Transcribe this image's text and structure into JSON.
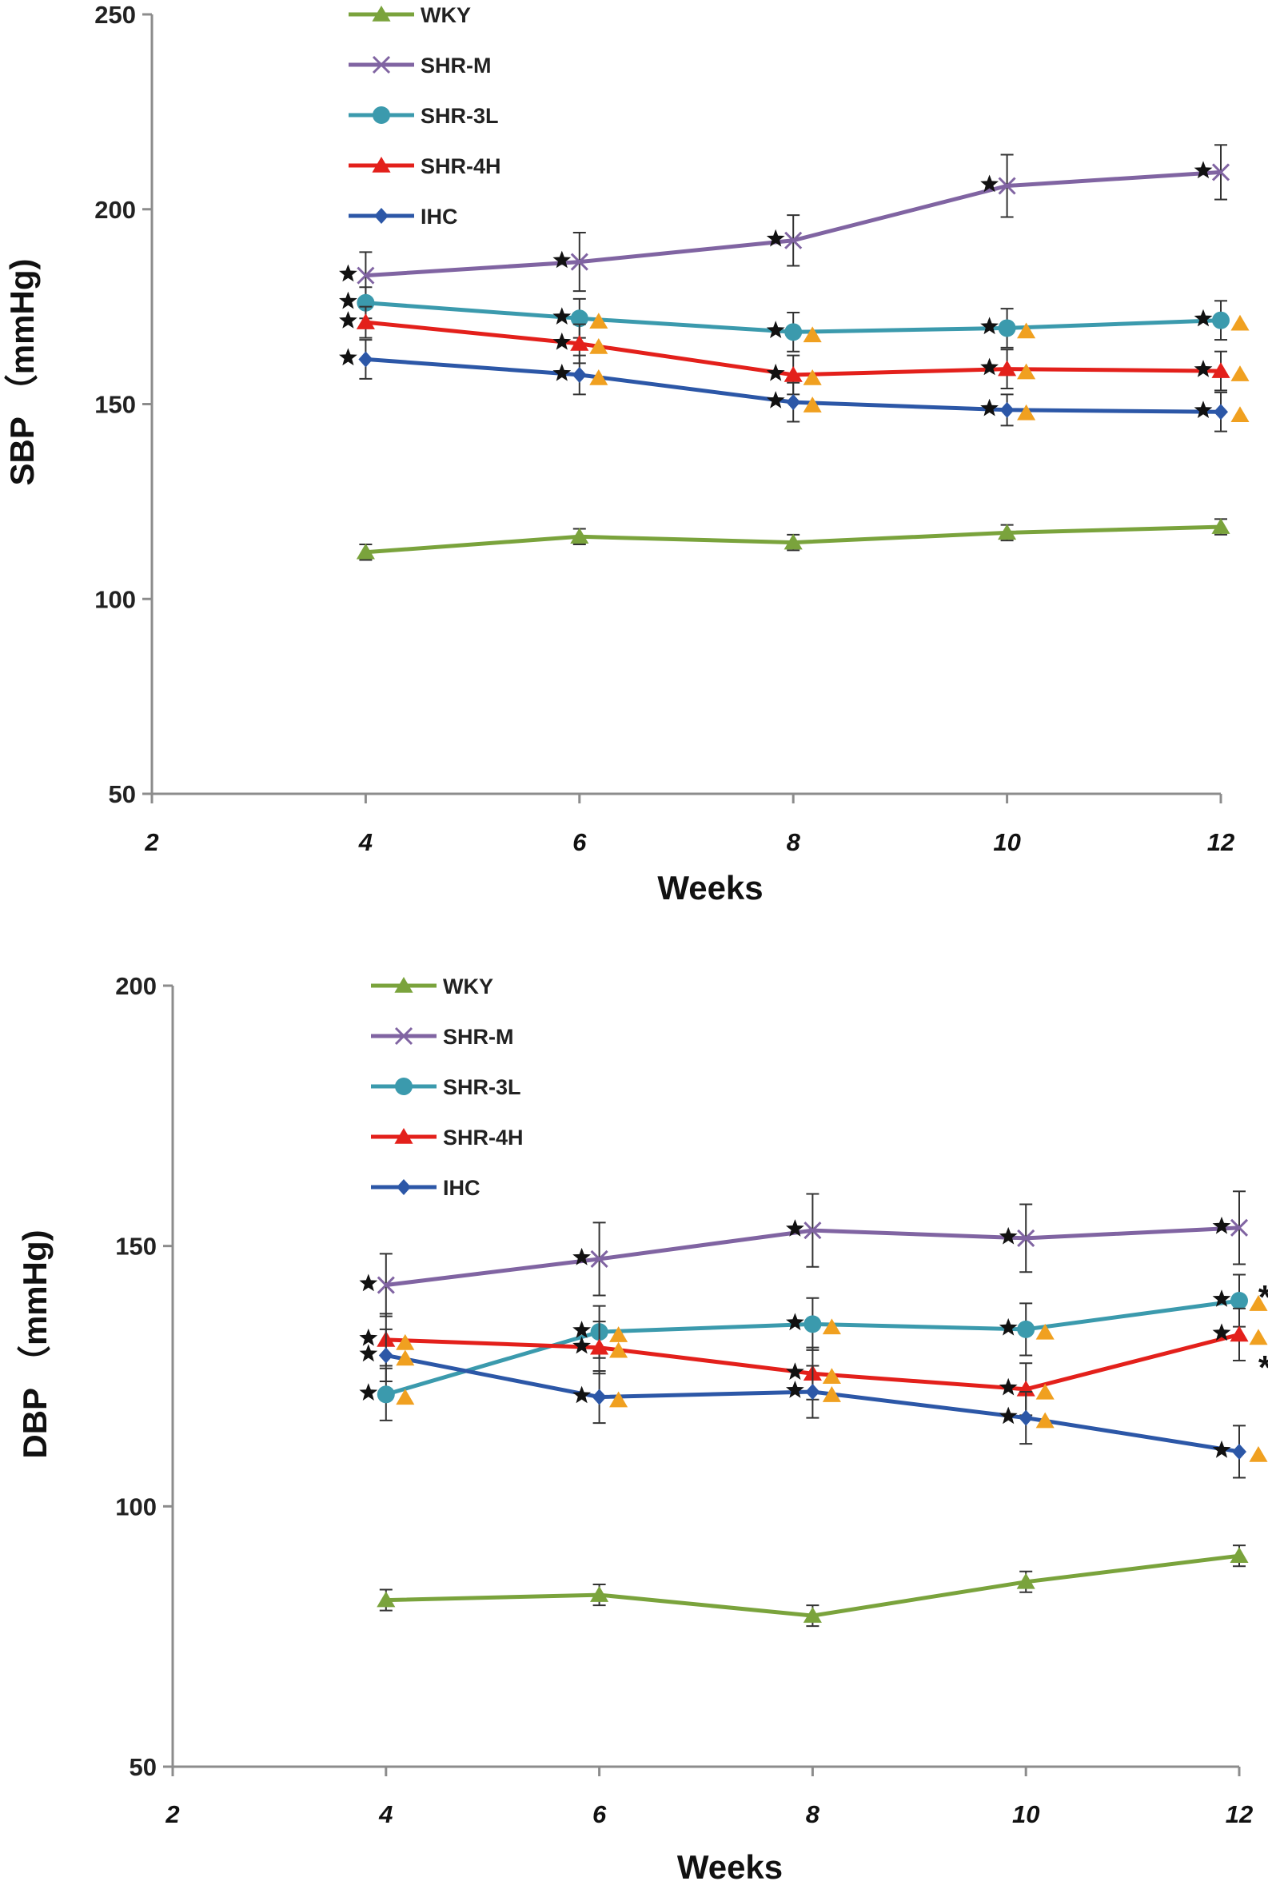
{
  "colors": {
    "WKY": "#7aa33c",
    "SHR-M": "#8064a2",
    "SHR-3L": "#3b9aad",
    "SHR-4H": "#e3201b",
    "IHC": "#2c57a7",
    "star": "#111111",
    "triangle": "#f0a020",
    "axis": "#8c8c8c"
  },
  "chart_data": [
    {
      "type": "line",
      "title": "",
      "xlabel": "Weeks",
      "ylabel": "SBP （mmHg)",
      "xlim": [
        2,
        12
      ],
      "ylim": [
        50,
        250
      ],
      "x_ticks": [
        "2",
        "4",
        "6",
        "8",
        "10",
        "12"
      ],
      "y_ticks": [
        "50",
        "100",
        "150",
        "200",
        "250"
      ],
      "legend_position": "top-left",
      "x": [
        4,
        6,
        8,
        10,
        12
      ],
      "series": [
        {
          "name": "WKY",
          "marker": "triangle",
          "values": [
            112,
            116,
            114.5,
            117,
            118.5
          ],
          "err": [
            2,
            2,
            2,
            2,
            2
          ],
          "stars": [
            false,
            false,
            false,
            false,
            false
          ],
          "triangles": [
            false,
            false,
            false,
            false,
            false
          ]
        },
        {
          "name": "SHR-M",
          "marker": "x",
          "values": [
            183,
            186.5,
            192,
            206,
            209.5
          ],
          "err": [
            6,
            7.5,
            6.5,
            8,
            7
          ],
          "stars": [
            true,
            true,
            true,
            true,
            true
          ],
          "triangles": [
            false,
            false,
            false,
            false,
            false
          ]
        },
        {
          "name": "SHR-3L",
          "marker": "circle",
          "values": [
            176,
            172,
            168.5,
            169.5,
            171.5
          ],
          "err": [
            4,
            5,
            5,
            5,
            5
          ],
          "stars": [
            true,
            true,
            true,
            true,
            true
          ],
          "triangles": [
            false,
            true,
            true,
            true,
            true
          ]
        },
        {
          "name": "SHR-4H",
          "marker": "triangle",
          "values": [
            171,
            165.5,
            157.5,
            159,
            158.5
          ],
          "err": [
            4,
            5,
            5,
            5,
            5
          ],
          "stars": [
            true,
            true,
            true,
            true,
            true
          ],
          "triangles": [
            false,
            true,
            true,
            true,
            true
          ]
        },
        {
          "name": "IHC",
          "marker": "diamond",
          "values": [
            161.5,
            157.5,
            150.5,
            148.5,
            148
          ],
          "err": [
            5,
            5,
            5,
            4,
            5
          ],
          "stars": [
            true,
            true,
            true,
            true,
            true
          ],
          "triangles": [
            false,
            true,
            true,
            true,
            true
          ]
        }
      ]
    },
    {
      "type": "line",
      "title": "",
      "xlabel": "Weeks",
      "ylabel": "DBP （mmHg)",
      "xlim": [
        2,
        12
      ],
      "ylim": [
        50,
        200
      ],
      "x_ticks": [
        "2",
        "4",
        "6",
        "8",
        "10",
        "12"
      ],
      "y_ticks": [
        "50",
        "100",
        "150",
        "200"
      ],
      "legend_position": "top-left",
      "x": [
        4,
        6,
        8,
        10,
        12
      ],
      "series": [
        {
          "name": "WKY",
          "marker": "triangle",
          "values": [
            82,
            83,
            79,
            85.5,
            90.5
          ],
          "err": [
            2,
            2,
            2,
            2,
            2
          ],
          "stars": [
            false,
            false,
            false,
            false,
            false
          ],
          "triangles": [
            false,
            false,
            false,
            false,
            false
          ]
        },
        {
          "name": "SHR-M",
          "marker": "x",
          "values": [
            142.5,
            147.5,
            153,
            151.5,
            153.5
          ],
          "err": [
            6,
            7,
            7,
            6.5,
            7
          ],
          "stars": [
            true,
            true,
            true,
            true,
            true
          ],
          "triangles": [
            false,
            false,
            false,
            false,
            false
          ]
        },
        {
          "name": "SHR-3L",
          "marker": "circle",
          "values": [
            121.5,
            133.5,
            135,
            134,
            139.5
          ],
          "err": [
            5,
            5,
            5,
            5,
            5
          ],
          "stars": [
            true,
            true,
            true,
            true,
            true
          ],
          "triangles": [
            true,
            true,
            true,
            true,
            true
          ]
        },
        {
          "name": "SHR-4H",
          "marker": "triangle",
          "values": [
            132,
            130.5,
            125.5,
            122.5,
            133
          ],
          "err": [
            5,
            5,
            5,
            5,
            5
          ],
          "stars": [
            true,
            true,
            true,
            true,
            true
          ],
          "triangles": [
            true,
            true,
            true,
            true,
            true
          ]
        },
        {
          "name": "IHC",
          "marker": "diamond",
          "values": [
            129,
            121,
            122,
            117,
            110.5
          ],
          "err": [
            5,
            5,
            5,
            5,
            5
          ],
          "stars": [
            true,
            true,
            true,
            true,
            true
          ],
          "triangles": [
            true,
            true,
            true,
            true,
            true
          ]
        }
      ],
      "annotations": [
        "*",
        "*"
      ]
    }
  ]
}
